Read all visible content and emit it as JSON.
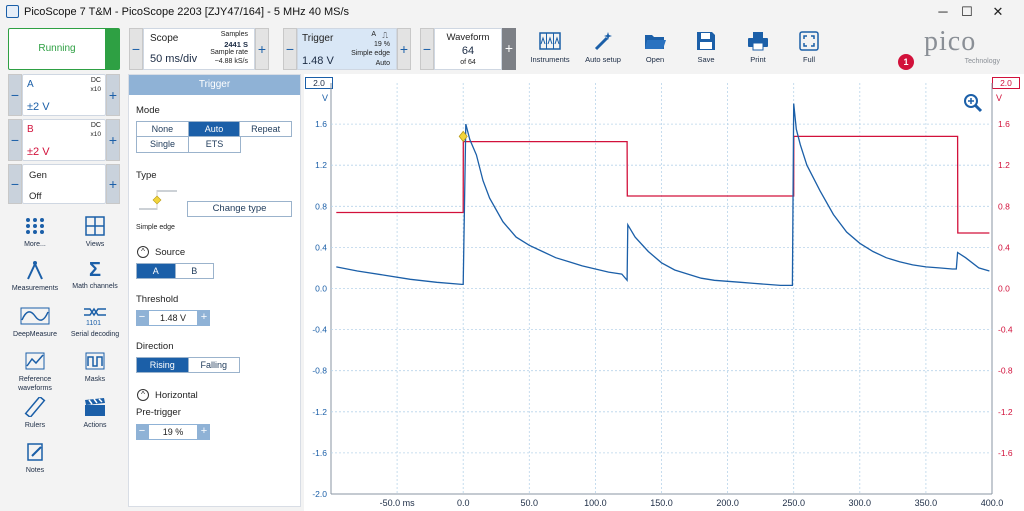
{
  "window": {
    "title": "PicoScope 7 T&M  - PicoScope 2203 [ZJY47/164] - 5 MHz 40 MS/s",
    "minimize": "─",
    "maximize": "☐",
    "close": "✕"
  },
  "toolbar": {
    "run_state": "Running",
    "scope": {
      "label": "Scope",
      "value": "50 ms/div",
      "samples_label": "Samples",
      "samples": "2441 S",
      "rate_label": "Sample rate",
      "rate": "~4.88 kS/s"
    },
    "trigger": {
      "label": "Trigger",
      "value": "1.48 V",
      "channel": "A",
      "pretrigger": "19 %",
      "type": "Simple edge",
      "mode": "Auto"
    },
    "waveform": {
      "label": "Waveform",
      "value": "64",
      "of": "of 64"
    },
    "buttons": [
      "Instruments",
      "Auto setup",
      "Open",
      "Save",
      "Print",
      "Full"
    ],
    "logo_text": "pico",
    "logo_sub": "Technology",
    "notification_count": "1"
  },
  "channels": [
    {
      "name": "A",
      "coupling": "DC",
      "probe": "x10",
      "range": "±2 V",
      "color": "#1b5fa8"
    },
    {
      "name": "B",
      "coupling": "DC",
      "probe": "x10",
      "range": "±2 V",
      "color": "#d2113b"
    }
  ],
  "gen": {
    "label": "Gen",
    "state": "Off"
  },
  "tools": [
    "More...",
    "Views",
    "Measurements",
    "Math channels",
    "DeepMeasure",
    "Serial decoding",
    "Reference waveforms",
    "Masks",
    "Rulers",
    "Actions",
    "Notes"
  ],
  "trigger_panel": {
    "header": "Trigger",
    "mode_label": "Mode",
    "modes": [
      "None",
      "Auto",
      "Repeat",
      "Single",
      "ETS"
    ],
    "active_mode": "Auto",
    "type_label": "Type",
    "type_caption": "Simple edge",
    "change_type": "Change type",
    "source_label": "Source",
    "sources": [
      "A",
      "B"
    ],
    "active_source": "A",
    "threshold_label": "Threshold",
    "threshold": "1.48 V",
    "direction_label": "Direction",
    "directions": [
      "Rising",
      "Falling"
    ],
    "active_direction": "Rising",
    "horizontal_label": "Horizontal",
    "pretrigger_label": "Pre-trigger",
    "pretrigger": "19 %"
  },
  "chart_data": {
    "type": "line",
    "title": "",
    "xlabel": "",
    "x_unit": "ms",
    "xlim": [
      -100,
      400
    ],
    "x_ticks": [
      "-50.0 ms",
      "0.0",
      "50.0",
      "100.0",
      "150.0",
      "200.0",
      "250.0",
      "300.0",
      "350.0",
      "400.0"
    ],
    "y_left": {
      "label": "V",
      "range_box": "2.0",
      "ylim": [
        -2.0,
        2.0
      ],
      "ticks": [
        "1.6",
        "1.2",
        "0.8",
        "0.4",
        "0.0",
        "-0.4",
        "-0.8",
        "-1.2",
        "-1.6",
        "-2.0"
      ]
    },
    "y_right": {
      "label": "V",
      "range_box": "2.0",
      "ylim": [
        -2.0,
        2.0
      ],
      "ticks": [
        "1.6",
        "1.2",
        "0.8",
        "0.4",
        "0.0",
        "-0.4",
        "-0.8",
        "-1.2",
        "-1.6"
      ]
    },
    "grid": true,
    "series": [
      {
        "color": "#d2113b",
        "x": [
          -96,
          0,
          0.1,
          124,
          124.1,
          250,
          250.1,
          374,
          374.1,
          398
        ],
        "y": [
          0.74,
          0.74,
          1.43,
          1.43,
          0.9,
          0.9,
          1.48,
          1.48,
          0.54,
          0.54
        ]
      },
      {
        "color": "#1b5fa8",
        "x": [
          -96,
          -80,
          -60,
          -40,
          -20,
          -1,
          0,
          2,
          5,
          10,
          15,
          20,
          30,
          40,
          50,
          60,
          70,
          80,
          90,
          100,
          110,
          120,
          124,
          124.5,
          130,
          140,
          150,
          160,
          170,
          180,
          190,
          200,
          210,
          220,
          230,
          240,
          249,
          250,
          252,
          255,
          260,
          270,
          280,
          290,
          300,
          310,
          320,
          330,
          340,
          350,
          360,
          370,
          373,
          374,
          380,
          390,
          398
        ],
        "y": [
          0.21,
          0.17,
          0.13,
          0.09,
          0.06,
          0.04,
          0.04,
          1.6,
          1.45,
          1.3,
          1.05,
          0.88,
          0.65,
          0.5,
          0.42,
          0.36,
          0.3,
          0.26,
          0.22,
          0.19,
          0.16,
          0.14,
          0.08,
          0.62,
          0.5,
          0.36,
          0.25,
          0.18,
          0.14,
          0.1,
          0.08,
          0.07,
          0.06,
          0.05,
          0.04,
          0.03,
          0.03,
          1.8,
          1.55,
          1.4,
          1.2,
          0.95,
          0.72,
          0.55,
          0.44,
          0.36,
          0.3,
          0.26,
          0.23,
          0.21,
          0.2,
          0.19,
          0.19,
          0.35,
          0.3,
          0.2,
          0.17
        ]
      }
    ],
    "trigger_marker": {
      "x": 0,
      "y": 1.48
    }
  }
}
